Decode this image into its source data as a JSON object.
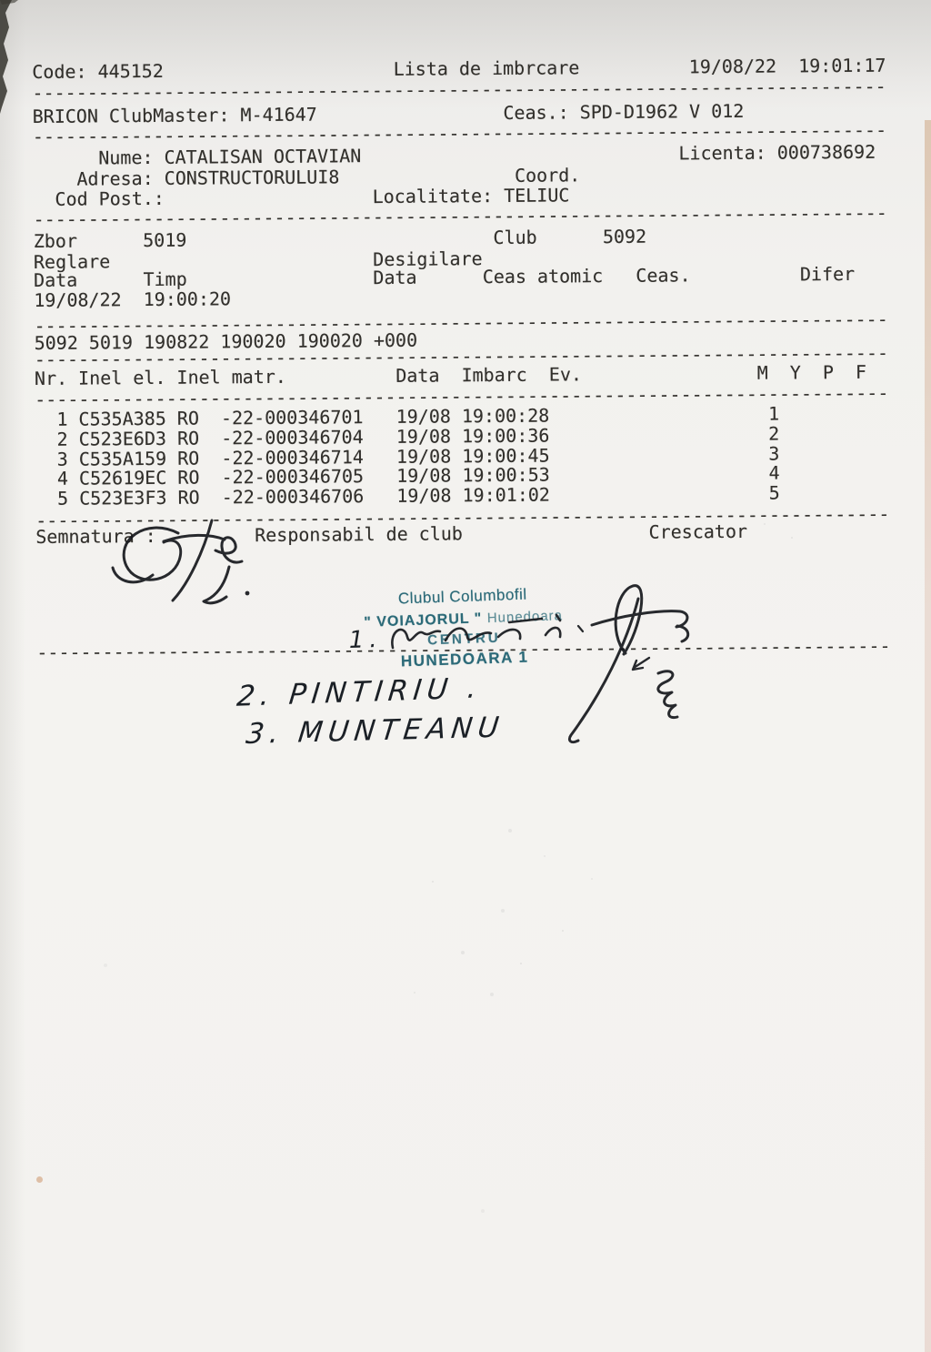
{
  "document": {
    "title": "Lista de imbrcare",
    "code_line": {
      "code": "Code: 445152",
      "title": "Lista de imbrcare",
      "date": "19/08/22",
      "time": "19:01:17"
    },
    "device_line": {
      "device": "BRICON ClubMaster: M-41647",
      "clock": "Ceas.: SPD-D1962 V 012"
    },
    "owner": {
      "name_label": "Nume:",
      "name": "CATALISAN OCTAVIAN",
      "licence_label": "Licenta:",
      "licence": "000738692",
      "address_label": "Adresa:",
      "address": "CONSTRUCTORULUI8",
      "coord_label": "Coord.",
      "postcode_label": "Cod Post.:",
      "locality_label": "Localitate:",
      "locality": "TELIUC"
    },
    "flight": {
      "zbor_label": "Zbor",
      "zbor": "5019",
      "club_label": "Club",
      "club": "5092",
      "reglare_label": "Reglare",
      "desigilare_label": "Desigilare",
      "cols": [
        "Data",
        "Timp",
        "Data",
        "Ceas atomic",
        "Ceas.",
        "Difer"
      ],
      "reglare_data": "19/08/22",
      "reglare_timp": "19:00:20"
    },
    "record_line": "5092 5019 190822 190020 190020 +000",
    "footer": {
      "semnatura": "Semnatura :",
      "responsabil": "Responsabil de club",
      "crescator": "Crescator"
    }
  },
  "print": {
    "separator_char": "-",
    "separator_len": 78,
    "ink": "#32302c"
  },
  "table": {
    "columns": [
      "Nr.",
      "Inel el.",
      "Inel matr.",
      "Data",
      "Imbarc",
      "Ev.",
      "M",
      "Y",
      "P",
      "F"
    ],
    "rows": [
      [
        "1",
        "C535A385",
        "RO",
        "-22-000346701",
        "19/08",
        "19:00:28",
        "1"
      ],
      [
        "2",
        "C523E6D3",
        "RO",
        "-22-000346704",
        "19/08",
        "19:00:36",
        "2"
      ],
      [
        "3",
        "C535A159",
        "RO",
        "-22-000346714",
        "19/08",
        "19:00:45",
        "3"
      ],
      [
        "4",
        "C52619EC",
        "RO",
        "-22-000346705",
        "19/08",
        "19:00:53",
        "4"
      ],
      [
        "5",
        "C523E3F3",
        "RO",
        "-22-000346706",
        "19/08",
        "19:01:02",
        "5"
      ]
    ]
  },
  "stamp": {
    "line1": "Clubul Columbofil",
    "line2_bold": "\" VOIAJORUL \"",
    "line2_light": "Hunedoara",
    "line3": "CENTRU",
    "line4": "HUNEDOARA 1",
    "color": "#1d6070"
  },
  "handwriting": {
    "item1_no": "1.",
    "item2": "2. PINTIRIU .",
    "item3": "3. MUNTEANU",
    "pen_color": "#16181d"
  }
}
